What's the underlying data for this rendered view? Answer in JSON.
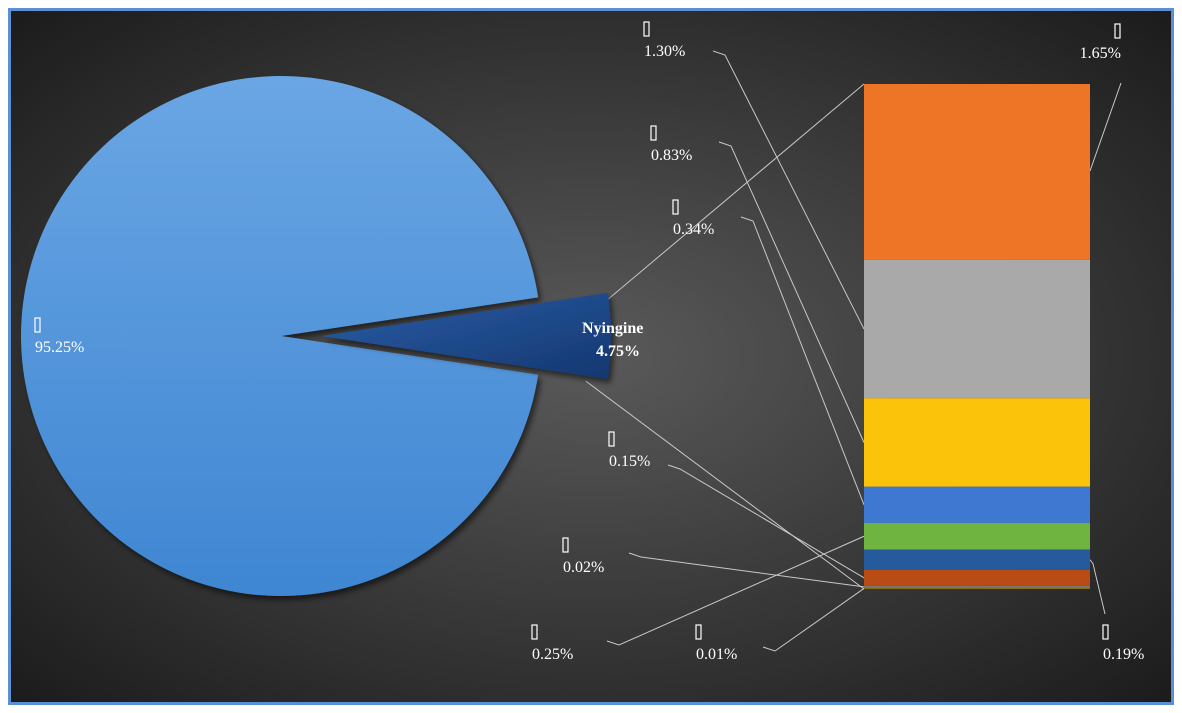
{
  "chart_data": {
    "type": "bar-of-pie",
    "title": "",
    "pie": [
      {
        "label": "▯",
        "value": 95.25,
        "color": "#4d93da"
      },
      {
        "label": "Nyingine",
        "value": 4.75,
        "color": "#1d4888"
      }
    ],
    "bar": [
      {
        "label": "▯",
        "value": 1.65,
        "color": "#ee7426"
      },
      {
        "label": "▯",
        "value": 1.3,
        "color": "#a9a9a9"
      },
      {
        "label": "▯",
        "value": 0.83,
        "color": "#fcc30b"
      },
      {
        "label": "▯",
        "value": 0.34,
        "color": "#3f78d0"
      },
      {
        "label": "▯",
        "value": 0.25,
        "color": "#6fb441"
      },
      {
        "label": "▯",
        "value": 0.19,
        "color": "#255b9c"
      },
      {
        "label": "▯",
        "value": 0.15,
        "color": "#b84c14"
      },
      {
        "label": "▯",
        "value": 0.02,
        "color": "#777777"
      },
      {
        "label": "▯",
        "value": 0.01,
        "color": "#8f6a10"
      }
    ],
    "data_labels": {
      "pie_main": {
        "name": "▯",
        "value": "95.25%"
      },
      "pie_other": {
        "name": "Nyingine",
        "value": "4.75%"
      },
      "bar": [
        {
          "name": "▯",
          "value": "1.65%"
        },
        {
          "name": "▯",
          "value": "1.30%"
        },
        {
          "name": "▯",
          "value": "0.83%"
        },
        {
          "name": "▯",
          "value": "0.34%"
        },
        {
          "name": "▯",
          "value": "0.25%"
        },
        {
          "name": "▯",
          "value": "0.19%"
        },
        {
          "name": "▯",
          "value": "0.15%"
        },
        {
          "name": "▯",
          "value": "0.02%"
        },
        {
          "name": "▯",
          "value": "0.01%"
        }
      ]
    },
    "colors": {
      "background_center": "#5a5a5a",
      "background_edge": "#1c1c1c",
      "border": "#5b8fd6"
    }
  }
}
